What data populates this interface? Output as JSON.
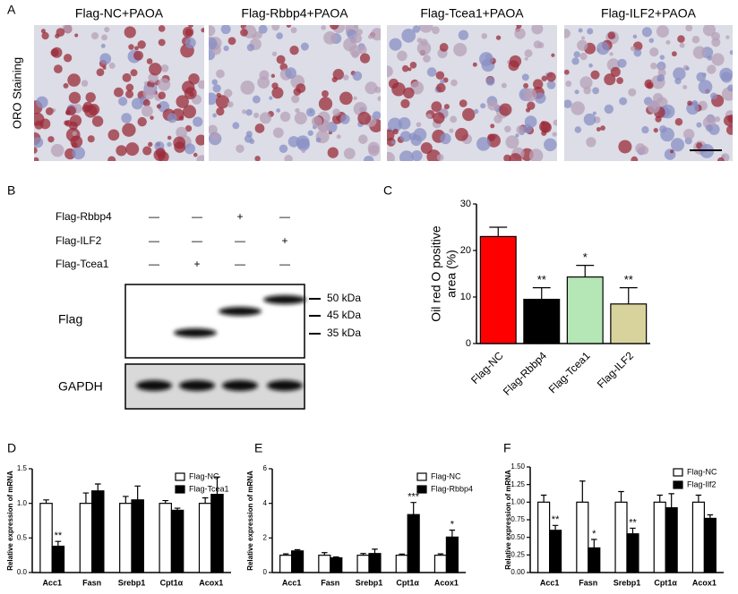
{
  "panel_labels": [
    "A",
    "B",
    "C",
    "D",
    "E",
    "F"
  ],
  "panel_a": {
    "ylabel": "ORO Staining",
    "images": [
      {
        "title": "Flag-NC+PAOA"
      },
      {
        "title": "Flag-Rbbp4+PAOA"
      },
      {
        "title": "Flag-Tcea1+PAOA"
      },
      {
        "title": "Flag-ILF2+PAOA"
      }
    ]
  },
  "panel_b": {
    "conditions": [
      {
        "label": "Flag-Rbbp4",
        "marks": [
          "—",
          "—",
          "+",
          "—"
        ]
      },
      {
        "label": "Flag-ILF2",
        "marks": [
          "—",
          "—",
          "—",
          "+"
        ]
      },
      {
        "label": "Flag-Tcea1",
        "marks": [
          "—",
          "+",
          "—",
          "—"
        ]
      }
    ],
    "blots": [
      {
        "label": "Flag"
      },
      {
        "label": "GAPDH"
      }
    ],
    "markers": [
      "50 kDa",
      "45 kDa",
      "35 kDa"
    ]
  },
  "chart_data": [
    {
      "type": "bar",
      "ylabel": [
        "Oil red O positive",
        "area (%)"
      ],
      "categories": [
        "Flag-NC",
        "Flag-Rbbp4",
        "Flag-Tcea1",
        "Flag-ILF2"
      ],
      "values": [
        23,
        9.5,
        14.3,
        8.5
      ],
      "errors": [
        2,
        2.5,
        2.5,
        3.5
      ],
      "annotations": [
        null,
        "**",
        "*",
        "**"
      ],
      "colors": [
        "#ff0000",
        "#000000",
        "#b5e6b5",
        "#d8d39c"
      ],
      "ylim": [
        0,
        30
      ],
      "yticks": [
        0,
        10,
        20,
        30
      ]
    },
    {
      "type": "bar",
      "ylabel": "Relative expression of mRNA",
      "categories": [
        "Acc1",
        "Fasn",
        "Srebp1",
        "Cpt1α",
        "Acox1"
      ],
      "series": [
        {
          "name": "Flag-NC",
          "color": "#ffffff",
          "values": [
            1.0,
            1.0,
            1.0,
            1.0,
            1.0
          ],
          "errors": [
            0.05,
            0.15,
            0.1,
            0.04,
            0.08
          ],
          "annotations": [
            null,
            null,
            null,
            null,
            null
          ]
        },
        {
          "name": "Flag-Tcea1",
          "color": "#000000",
          "values": [
            0.38,
            1.18,
            1.05,
            0.9,
            1.13
          ],
          "errors": [
            0.07,
            0.1,
            0.2,
            0.03,
            0.25
          ],
          "annotations": [
            "**",
            null,
            null,
            null,
            null
          ]
        }
      ],
      "ylim": [
        0,
        1.5
      ],
      "yticks": [
        {
          "value": 0,
          "label": "0.0"
        },
        {
          "value": 0.5,
          "label": "0.5"
        },
        {
          "value": 1,
          "label": "1.0"
        },
        {
          "value": 1.5,
          "label": "1.5"
        }
      ]
    },
    {
      "type": "bar",
      "ylabel": "Relative expression of mRNA",
      "categories": [
        "Acc1",
        "Fasn",
        "Srebp1",
        "Cpt1α",
        "Acox1"
      ],
      "series": [
        {
          "name": "Flag-NC",
          "color": "#ffffff",
          "values": [
            1.0,
            1.0,
            1.0,
            1.0,
            1.0
          ],
          "errors": [
            0.08,
            0.15,
            0.1,
            0.07,
            0.08
          ],
          "annotations": [
            null,
            null,
            null,
            null,
            null
          ]
        },
        {
          "name": "Flag-Rbbp4",
          "color": "#000000",
          "values": [
            1.25,
            0.85,
            1.1,
            3.35,
            2.05
          ],
          "errors": [
            0.07,
            0.05,
            0.25,
            0.7,
            0.4
          ],
          "annotations": [
            null,
            null,
            null,
            "***",
            "*"
          ]
        }
      ],
      "ylim": [
        0,
        6
      ],
      "yticks": [
        0,
        2,
        4,
        6
      ]
    },
    {
      "type": "bar",
      "ylabel": "Relative expression of mRNA",
      "categories": [
        "Acc1",
        "Fasn",
        "Srebp1",
        "Cpt1α",
        "Acox1"
      ],
      "series": [
        {
          "name": "Flag-NC",
          "color": "#ffffff",
          "values": [
            1.0,
            1.0,
            1.0,
            1.0,
            1.0
          ],
          "errors": [
            0.1,
            0.3,
            0.15,
            0.1,
            0.1
          ],
          "annotations": [
            null,
            null,
            null,
            null,
            null
          ]
        },
        {
          "name": "Flag-Ilf2",
          "color": "#000000",
          "values": [
            0.6,
            0.35,
            0.55,
            0.92,
            0.77
          ],
          "errors": [
            0.07,
            0.12,
            0.08,
            0.2,
            0.05
          ],
          "annotations": [
            "**",
            "*",
            "**",
            null,
            null
          ]
        }
      ],
      "ylim": [
        0,
        1.5
      ],
      "yticks": [
        {
          "value": 0,
          "label": "0.00"
        },
        {
          "value": 0.25,
          "label": "0.25"
        },
        {
          "value": 0.5,
          "label": "0.50"
        },
        {
          "value": 0.75,
          "label": "0.75"
        },
        {
          "value": 1,
          "label": "1.00"
        },
        {
          "value": 1.25,
          "label": "1.25"
        },
        {
          "value": 1.5,
          "label": "1.50"
        }
      ]
    }
  ]
}
